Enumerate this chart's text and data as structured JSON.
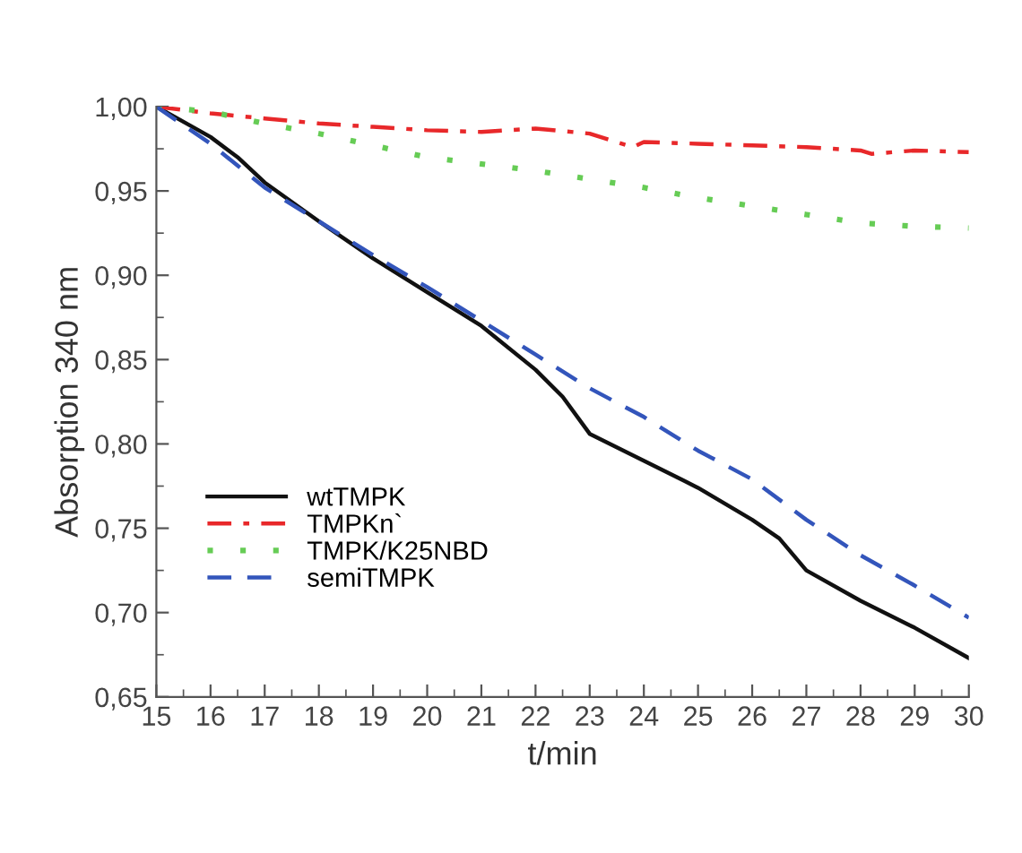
{
  "chart_data": {
    "type": "line",
    "xlabel": "t/min",
    "ylabel": "Absorption 340 nm",
    "xlim": [
      15,
      30
    ],
    "xticks": [
      15,
      16,
      17,
      18,
      19,
      20,
      21,
      22,
      23,
      24,
      25,
      26,
      27,
      28,
      29,
      30
    ],
    "ylim": [
      0.65,
      1.0
    ],
    "yticks": [
      {
        "value": 0.65,
        "label": "0,65"
      },
      {
        "value": 0.7,
        "label": "0,70"
      },
      {
        "value": 0.75,
        "label": "0,75"
      },
      {
        "value": 0.8,
        "label": "0,80"
      },
      {
        "value": 0.85,
        "label": "0,85"
      },
      {
        "value": 0.9,
        "label": "0,90"
      },
      {
        "value": 0.95,
        "label": "0,95"
      },
      {
        "value": 1.0,
        "label": "1,00"
      }
    ],
    "grid": false,
    "legend": "lower left",
    "marker": "none",
    "series": [
      {
        "name": "wtTMPK",
        "color": "#111111",
        "line_style": "solid",
        "x": [
          15,
          16,
          16.5,
          17,
          18,
          19,
          20,
          21,
          22,
          22.5,
          23,
          24,
          25,
          26,
          26.5,
          27,
          28,
          29,
          30
        ],
        "values": [
          1.0,
          0.982,
          0.97,
          0.955,
          0.932,
          0.91,
          0.89,
          0.87,
          0.844,
          0.828,
          0.806,
          0.79,
          0.774,
          0.755,
          0.744,
          0.725,
          0.707,
          0.691,
          0.673
        ]
      },
      {
        "name": "TMPKn`",
        "color": "#e8282a",
        "line_style": "dashdot",
        "x": [
          15,
          16,
          17,
          18,
          19,
          20,
          21,
          22,
          23,
          23.8,
          24,
          25,
          26,
          27,
          28,
          28.2,
          29,
          30
        ],
        "values": [
          1.0,
          0.996,
          0.993,
          0.99,
          0.988,
          0.986,
          0.985,
          0.987,
          0.984,
          0.976,
          0.979,
          0.978,
          0.977,
          0.976,
          0.974,
          0.972,
          0.974,
          0.973
        ]
      },
      {
        "name": "TMPK/K25NBD",
        "color": "#66cc55",
        "line_style": "dotted",
        "x": [
          15,
          16,
          17,
          18,
          19,
          20,
          21,
          22,
          23,
          24,
          25,
          26,
          27,
          28,
          29,
          30
        ],
        "values": [
          1.0,
          0.997,
          0.99,
          0.984,
          0.977,
          0.97,
          0.966,
          0.962,
          0.957,
          0.952,
          0.946,
          0.941,
          0.936,
          0.931,
          0.929,
          0.928
        ]
      },
      {
        "name": "semiTMPK",
        "color": "#3355bb",
        "line_style": "dashed",
        "x": [
          15,
          16,
          17,
          18,
          19,
          20,
          21,
          22,
          23,
          24,
          25,
          26,
          27,
          28,
          29,
          30
        ],
        "values": [
          1.0,
          0.978,
          0.952,
          0.932,
          0.912,
          0.893,
          0.873,
          0.853,
          0.833,
          0.816,
          0.796,
          0.779,
          0.755,
          0.734,
          0.716,
          0.697
        ]
      }
    ]
  }
}
